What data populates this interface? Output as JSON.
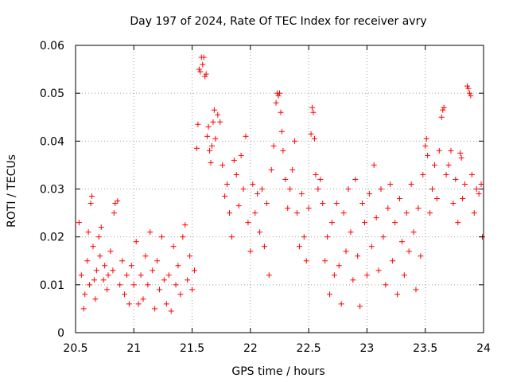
{
  "chart_data": {
    "type": "scatter",
    "title": "Day 197 of 2024, Rate Of TEC Index for receiver avry",
    "xlabel": "GPS time / hours",
    "ylabel": "ROTI / TECUs",
    "xlim": [
      20.5,
      24
    ],
    "ylim": [
      0,
      0.06
    ],
    "x_ticks": [
      20.5,
      21,
      21.5,
      22,
      22.5,
      23,
      23.5,
      24
    ],
    "x_tick_labels": [
      "20.5",
      "21",
      "21.5",
      "22",
      "22.5",
      "23",
      "23.5",
      "24"
    ],
    "y_ticks": [
      0,
      0.01,
      0.02,
      0.03,
      0.04,
      0.05,
      0.06
    ],
    "y_tick_labels": [
      "0",
      "0.01",
      "0.02",
      "0.03",
      "0.04",
      "0.05",
      "0.06"
    ],
    "grid": true,
    "marker": "+",
    "marker_color": "#ff0000",
    "series": [
      {
        "name": "ROTI",
        "points": [
          [
            20.53,
            0.023
          ],
          [
            20.55,
            0.012
          ],
          [
            20.57,
            0.005
          ],
          [
            20.58,
            0.008
          ],
          [
            20.6,
            0.015
          ],
          [
            20.61,
            0.021
          ],
          [
            20.62,
            0.01
          ],
          [
            20.63,
            0.027
          ],
          [
            20.64,
            0.0285
          ],
          [
            20.65,
            0.018
          ],
          [
            20.66,
            0.011
          ],
          [
            20.67,
            0.007
          ],
          [
            20.68,
            0.013
          ],
          [
            20.7,
            0.02
          ],
          [
            20.71,
            0.016
          ],
          [
            20.72,
            0.022
          ],
          [
            20.74,
            0.011
          ],
          [
            20.75,
            0.014
          ],
          [
            20.77,
            0.009
          ],
          [
            20.78,
            0.012
          ],
          [
            20.8,
            0.017
          ],
          [
            20.82,
            0.013
          ],
          [
            20.83,
            0.025
          ],
          [
            20.84,
            0.027
          ],
          [
            20.86,
            0.0275
          ],
          [
            20.88,
            0.01
          ],
          [
            20.9,
            0.015
          ],
          [
            20.92,
            0.008
          ],
          [
            20.94,
            0.012
          ],
          [
            20.96,
            0.006
          ],
          [
            20.98,
            0.014
          ],
          [
            21.0,
            0.01
          ],
          [
            21.02,
            0.019
          ],
          [
            21.04,
            0.006
          ],
          [
            21.06,
            0.012
          ],
          [
            21.08,
            0.007
          ],
          [
            21.1,
            0.016
          ],
          [
            21.12,
            0.01
          ],
          [
            21.14,
            0.021
          ],
          [
            21.16,
            0.013
          ],
          [
            21.18,
            0.005
          ],
          [
            21.2,
            0.015
          ],
          [
            21.22,
            0.009
          ],
          [
            21.24,
            0.02
          ],
          [
            21.26,
            0.011
          ],
          [
            21.28,
            0.006
          ],
          [
            21.3,
            0.012
          ],
          [
            21.32,
            0.0045
          ],
          [
            21.34,
            0.018
          ],
          [
            21.36,
            0.01
          ],
          [
            21.38,
            0.014
          ],
          [
            21.4,
            0.008
          ],
          [
            21.42,
            0.02
          ],
          [
            21.44,
            0.0225
          ],
          [
            21.46,
            0.011
          ],
          [
            21.48,
            0.016
          ],
          [
            21.5,
            0.009
          ],
          [
            21.52,
            0.013
          ],
          [
            21.54,
            0.0385
          ],
          [
            21.55,
            0.0435
          ],
          [
            21.56,
            0.055
          ],
          [
            21.57,
            0.0545
          ],
          [
            21.58,
            0.0575
          ],
          [
            21.59,
            0.056
          ],
          [
            21.6,
            0.0575
          ],
          [
            21.61,
            0.0535
          ],
          [
            21.62,
            0.054
          ],
          [
            21.63,
            0.041
          ],
          [
            21.64,
            0.043
          ],
          [
            21.65,
            0.038
          ],
          [
            21.66,
            0.0355
          ],
          [
            21.67,
            0.039
          ],
          [
            21.68,
            0.044
          ],
          [
            21.69,
            0.0465
          ],
          [
            21.7,
            0.0405
          ],
          [
            21.72,
            0.0455
          ],
          [
            21.74,
            0.044
          ],
          [
            21.76,
            0.035
          ],
          [
            21.78,
            0.0285
          ],
          [
            21.8,
            0.031
          ],
          [
            21.82,
            0.025
          ],
          [
            21.84,
            0.02
          ],
          [
            21.86,
            0.036
          ],
          [
            21.88,
            0.033
          ],
          [
            21.9,
            0.0265
          ],
          [
            21.92,
            0.037
          ],
          [
            21.94,
            0.03
          ],
          [
            21.96,
            0.041
          ],
          [
            21.98,
            0.023
          ],
          [
            22.0,
            0.017
          ],
          [
            22.02,
            0.031
          ],
          [
            22.04,
            0.025
          ],
          [
            22.06,
            0.029
          ],
          [
            22.08,
            0.021
          ],
          [
            22.1,
            0.03
          ],
          [
            22.12,
            0.018
          ],
          [
            22.14,
            0.027
          ],
          [
            22.16,
            0.012
          ],
          [
            22.18,
            0.034
          ],
          [
            22.2,
            0.039
          ],
          [
            22.22,
            0.048
          ],
          [
            22.23,
            0.05
          ],
          [
            22.24,
            0.0495
          ],
          [
            22.25,
            0.05
          ],
          [
            22.26,
            0.046
          ],
          [
            22.27,
            0.042
          ],
          [
            22.28,
            0.038
          ],
          [
            22.3,
            0.032
          ],
          [
            22.32,
            0.026
          ],
          [
            22.34,
            0.03
          ],
          [
            22.36,
            0.034
          ],
          [
            22.38,
            0.04
          ],
          [
            22.4,
            0.025
          ],
          [
            22.42,
            0.018
          ],
          [
            22.44,
            0.029
          ],
          [
            22.46,
            0.02
          ],
          [
            22.48,
            0.015
          ],
          [
            22.5,
            0.026
          ],
          [
            22.52,
            0.0415
          ],
          [
            22.53,
            0.047
          ],
          [
            22.54,
            0.046
          ],
          [
            22.55,
            0.0405
          ],
          [
            22.56,
            0.033
          ],
          [
            22.58,
            0.03
          ],
          [
            22.6,
            0.032
          ],
          [
            22.62,
            0.027
          ],
          [
            22.64,
            0.015
          ],
          [
            22.66,
            0.02
          ],
          [
            22.68,
            0.008
          ],
          [
            22.7,
            0.023
          ],
          [
            22.72,
            0.012
          ],
          [
            22.74,
            0.027
          ],
          [
            22.76,
            0.014
          ],
          [
            22.78,
            0.006
          ],
          [
            22.8,
            0.025
          ],
          [
            22.82,
            0.017
          ],
          [
            22.84,
            0.03
          ],
          [
            22.86,
            0.021
          ],
          [
            22.88,
            0.011
          ],
          [
            22.9,
            0.032
          ],
          [
            22.92,
            0.016
          ],
          [
            22.94,
            0.0055
          ],
          [
            22.96,
            0.027
          ],
          [
            22.98,
            0.023
          ],
          [
            23.0,
            0.012
          ],
          [
            23.02,
            0.029
          ],
          [
            23.04,
            0.018
          ],
          [
            23.06,
            0.035
          ],
          [
            23.08,
            0.024
          ],
          [
            23.1,
            0.013
          ],
          [
            23.12,
            0.03
          ],
          [
            23.14,
            0.02
          ],
          [
            23.16,
            0.01
          ],
          [
            23.18,
            0.026
          ],
          [
            23.2,
            0.031
          ],
          [
            23.22,
            0.015
          ],
          [
            23.24,
            0.023
          ],
          [
            23.26,
            0.008
          ],
          [
            23.28,
            0.028
          ],
          [
            23.3,
            0.019
          ],
          [
            23.32,
            0.012
          ],
          [
            23.34,
            0.025
          ],
          [
            23.36,
            0.017
          ],
          [
            23.38,
            0.031
          ],
          [
            23.4,
            0.021
          ],
          [
            23.42,
            0.009
          ],
          [
            23.44,
            0.026
          ],
          [
            23.46,
            0.016
          ],
          [
            23.48,
            0.033
          ],
          [
            23.5,
            0.039
          ],
          [
            23.51,
            0.0405
          ],
          [
            23.52,
            0.037
          ],
          [
            23.54,
            0.025
          ],
          [
            23.56,
            0.03
          ],
          [
            23.58,
            0.035
          ],
          [
            23.6,
            0.028
          ],
          [
            23.62,
            0.038
          ],
          [
            23.64,
            0.045
          ],
          [
            23.65,
            0.0465
          ],
          [
            23.66,
            0.047
          ],
          [
            23.68,
            0.033
          ],
          [
            23.7,
            0.035
          ],
          [
            23.72,
            0.038
          ],
          [
            23.74,
            0.027
          ],
          [
            23.76,
            0.032
          ],
          [
            23.78,
            0.023
          ],
          [
            23.8,
            0.0375
          ],
          [
            23.81,
            0.0365
          ],
          [
            23.82,
            0.028
          ],
          [
            23.84,
            0.031
          ],
          [
            23.86,
            0.0515
          ],
          [
            23.87,
            0.051
          ],
          [
            23.88,
            0.05
          ],
          [
            23.89,
            0.0495
          ],
          [
            23.9,
            0.033
          ],
          [
            23.92,
            0.025
          ],
          [
            23.94,
            0.03
          ],
          [
            23.96,
            0.029
          ],
          [
            23.98,
            0.031
          ],
          [
            23.99,
            0.02
          ]
        ]
      }
    ]
  }
}
